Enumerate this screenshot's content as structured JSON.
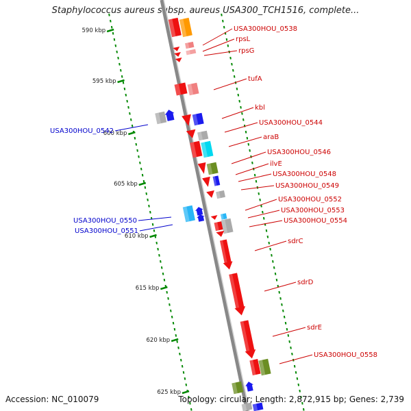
{
  "title": "Staphylococcus aureus subsp. aureus USA300_TCH1516, complete...",
  "footer": {
    "accession": "Accession: NC_010079",
    "topology": "Topology: circular; Length: 2,872,915 bp; Genes: 2,739"
  },
  "colors": {
    "cds_red": "#ee1111",
    "rrna_orange": "#ff9900",
    "label_red": "#cc0000",
    "label_blue": "#0000cc",
    "olive": "#6b8e23",
    "cyan": "#00d8f0",
    "blue": "#1a1aee",
    "gray": "#aaaaaa",
    "tick_green": "#008800"
  },
  "scale": [
    {
      "label": "590 kbp",
      "pos": 590
    },
    {
      "label": "595 kbp",
      "pos": 595
    },
    {
      "label": "600 kbp",
      "pos": 600
    },
    {
      "label": "605 kbp",
      "pos": 605
    },
    {
      "label": "610 kbp",
      "pos": 610
    },
    {
      "label": "615 kbp",
      "pos": 615
    },
    {
      "label": "620 kbp",
      "pos": 620
    },
    {
      "label": "625 kbp",
      "pos": 625
    }
  ],
  "gene_labels": [
    {
      "text": "USA300HOU_0538",
      "side": "right",
      "color": "red"
    },
    {
      "text": "rpsL",
      "side": "right",
      "color": "red"
    },
    {
      "text": "rpsG",
      "side": "right",
      "color": "red"
    },
    {
      "text": "tufA",
      "side": "right",
      "color": "red"
    },
    {
      "text": "kbl",
      "side": "right",
      "color": "red"
    },
    {
      "text": "USA300HOU_0544",
      "side": "right",
      "color": "red"
    },
    {
      "text": "araB",
      "side": "right",
      "color": "red"
    },
    {
      "text": "USA300HOU_0546",
      "side": "right",
      "color": "red"
    },
    {
      "text": "ilvE",
      "side": "right",
      "color": "red"
    },
    {
      "text": "USA300HOU_0548",
      "side": "right",
      "color": "red"
    },
    {
      "text": "USA300HOU_0549",
      "side": "right",
      "color": "red"
    },
    {
      "text": "USA300HOU_0552",
      "side": "right",
      "color": "red"
    },
    {
      "text": "USA300HOU_0553",
      "side": "right",
      "color": "red"
    },
    {
      "text": "USA300HOU_0554",
      "side": "right",
      "color": "red"
    },
    {
      "text": "sdrC",
      "side": "right",
      "color": "red"
    },
    {
      "text": "sdrD",
      "side": "right",
      "color": "red"
    },
    {
      "text": "sdrE",
      "side": "right",
      "color": "red"
    },
    {
      "text": "USA300HOU_0558",
      "side": "right",
      "color": "red"
    },
    {
      "text": "USA300HOU_0542",
      "side": "left",
      "color": "blue"
    },
    {
      "text": "USA300HOU_0550",
      "side": "left",
      "color": "blue"
    },
    {
      "text": "USA300HOU_0551",
      "side": "left",
      "color": "blue"
    }
  ]
}
